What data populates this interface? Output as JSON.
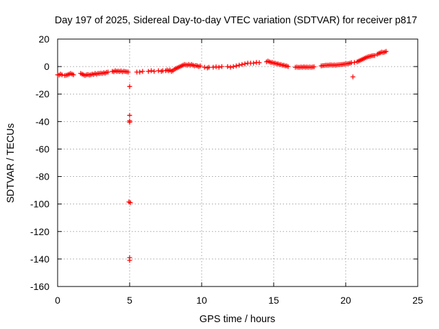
{
  "chart_data": {
    "type": "scatter",
    "title": "Day 197 of 2025, Sidereal Day-to-day VTEC variation (SDTVAR) for receiver p817",
    "xlabel": "GPS time / hours",
    "ylabel": "SDTVAR / TECUs",
    "xlim": [
      0,
      25
    ],
    "ylim": [
      -160,
      20
    ],
    "xticks": [
      "0",
      "5",
      "10",
      "15",
      "20",
      "25"
    ],
    "yticks": [
      "20",
      "0",
      "-20",
      "-40",
      "-60",
      "-80",
      "-100",
      "-120",
      "-140",
      "-160"
    ],
    "grid": true,
    "marker": "+",
    "color": "#ff0000",
    "series": [
      {
        "name": "SDTVAR",
        "points": [
          [
            0.0,
            -6.0
          ],
          [
            0.1,
            -6.2
          ],
          [
            0.2,
            -5.5
          ],
          [
            0.3,
            -6.0
          ],
          [
            0.5,
            -6.5
          ],
          [
            0.6,
            -6.3
          ],
          [
            0.7,
            -6.0
          ],
          [
            0.8,
            -5.5
          ],
          [
            0.9,
            -5.0
          ],
          [
            1.0,
            -5.5
          ],
          [
            1.1,
            -6.0
          ],
          [
            1.6,
            -5.0
          ],
          [
            1.7,
            -5.5
          ],
          [
            1.8,
            -6.0
          ],
          [
            1.9,
            -6.5
          ],
          [
            2.0,
            -6.0
          ],
          [
            2.1,
            -5.8
          ],
          [
            2.2,
            -6.2
          ],
          [
            2.3,
            -6.0
          ],
          [
            2.4,
            -5.5
          ],
          [
            2.5,
            -5.8
          ],
          [
            2.6,
            -5.0
          ],
          [
            2.7,
            -5.5
          ],
          [
            2.8,
            -5.0
          ],
          [
            2.9,
            -5.0
          ],
          [
            3.0,
            -4.8
          ],
          [
            3.1,
            -5.0
          ],
          [
            3.2,
            -4.5
          ],
          [
            3.3,
            -4.8
          ],
          [
            3.4,
            -4.2
          ],
          [
            3.5,
            -4.0
          ],
          [
            3.8,
            -3.5
          ],
          [
            3.9,
            -3.8
          ],
          [
            4.0,
            -3.0
          ],
          [
            4.1,
            -3.5
          ],
          [
            4.2,
            -3.3
          ],
          [
            4.3,
            -3.6
          ],
          [
            4.4,
            -3.2
          ],
          [
            4.5,
            -3.8
          ],
          [
            4.6,
            -3.4
          ],
          [
            4.7,
            -3.6
          ],
          [
            4.8,
            -3.8
          ],
          [
            4.9,
            -4.0
          ],
          [
            5.0,
            -14.5
          ],
          [
            5.0,
            -35.5
          ],
          [
            5.0,
            -39.5
          ],
          [
            5.0,
            -40.5
          ],
          [
            4.95,
            -98.5
          ],
          [
            5.05,
            -99.0
          ],
          [
            5.0,
            -139.0
          ],
          [
            5.0,
            -141.0
          ],
          [
            5.5,
            -4.0
          ],
          [
            5.7,
            -4.0
          ],
          [
            5.9,
            -3.5
          ],
          [
            6.3,
            -3.5
          ],
          [
            6.5,
            -3.0
          ],
          [
            6.7,
            -3.5
          ],
          [
            7.0,
            -3.0
          ],
          [
            7.2,
            -3.5
          ],
          [
            7.3,
            -3.0
          ],
          [
            7.5,
            -3.0
          ],
          [
            7.6,
            -2.5
          ],
          [
            7.7,
            -3.0
          ],
          [
            7.8,
            -2.5
          ],
          [
            7.9,
            -3.5
          ],
          [
            8.0,
            -3.0
          ],
          [
            8.1,
            -2.0
          ],
          [
            8.2,
            -1.5
          ],
          [
            8.3,
            -1.0
          ],
          [
            8.4,
            -0.5
          ],
          [
            8.5,
            0.0
          ],
          [
            8.6,
            0.5
          ],
          [
            8.7,
            1.0
          ],
          [
            8.8,
            1.5
          ],
          [
            8.9,
            1.2
          ],
          [
            9.0,
            1.0
          ],
          [
            9.1,
            1.5
          ],
          [
            9.2,
            1.0
          ],
          [
            9.3,
            1.5
          ],
          [
            9.4,
            1.0
          ],
          [
            9.5,
            0.5
          ],
          [
            9.6,
            0.8
          ],
          [
            9.7,
            0.5
          ],
          [
            9.8,
            0.0
          ],
          [
            9.9,
            0.5
          ],
          [
            10.2,
            -0.5
          ],
          [
            10.4,
            -1.0
          ],
          [
            10.5,
            -0.5
          ],
          [
            10.8,
            -0.5
          ],
          [
            11.0,
            -0.2
          ],
          [
            11.2,
            -0.5
          ],
          [
            11.4,
            0.0
          ],
          [
            11.8,
            0.0
          ],
          [
            12.0,
            -0.5
          ],
          [
            12.2,
            0.0
          ],
          [
            12.4,
            0.5
          ],
          [
            12.6,
            1.0
          ],
          [
            12.8,
            1.5
          ],
          [
            13.0,
            2.0
          ],
          [
            13.2,
            2.5
          ],
          [
            13.4,
            2.5
          ],
          [
            13.6,
            2.5
          ],
          [
            13.8,
            3.0
          ],
          [
            14.0,
            2.8
          ],
          [
            14.5,
            3.5
          ],
          [
            14.6,
            4.0
          ],
          [
            14.7,
            3.5
          ],
          [
            14.8,
            3.0
          ],
          [
            14.9,
            3.0
          ],
          [
            15.0,
            2.5
          ],
          [
            15.1,
            2.5
          ],
          [
            15.2,
            2.0
          ],
          [
            15.3,
            2.0
          ],
          [
            15.4,
            1.5
          ],
          [
            15.5,
            1.5
          ],
          [
            15.6,
            1.0
          ],
          [
            15.7,
            1.0
          ],
          [
            15.8,
            0.5
          ],
          [
            15.9,
            0.5
          ],
          [
            16.0,
            0.0
          ],
          [
            16.5,
            -0.5
          ],
          [
            16.6,
            -0.3
          ],
          [
            16.7,
            -0.5
          ],
          [
            16.8,
            -0.5
          ],
          [
            16.9,
            -0.3
          ],
          [
            17.0,
            -0.5
          ],
          [
            17.1,
            -0.2
          ],
          [
            17.2,
            -0.5
          ],
          [
            17.3,
            -0.3
          ],
          [
            17.4,
            -0.5
          ],
          [
            17.5,
            -0.3
          ],
          [
            17.6,
            -0.5
          ],
          [
            17.7,
            -0.3
          ],
          [
            17.8,
            -0.2
          ],
          [
            18.3,
            0.5
          ],
          [
            18.4,
            0.7
          ],
          [
            18.5,
            0.8
          ],
          [
            18.6,
            1.0
          ],
          [
            18.7,
            1.0
          ],
          [
            18.8,
            1.0
          ],
          [
            18.9,
            1.2
          ],
          [
            19.0,
            1.2
          ],
          [
            19.1,
            1.0
          ],
          [
            19.2,
            1.2
          ],
          [
            19.3,
            1.0
          ],
          [
            19.4,
            1.2
          ],
          [
            19.5,
            1.3
          ],
          [
            19.6,
            1.4
          ],
          [
            19.7,
            1.5
          ],
          [
            19.8,
            1.6
          ],
          [
            19.9,
            1.8
          ],
          [
            20.0,
            2.0
          ],
          [
            20.1,
            2.0
          ],
          [
            20.2,
            2.2
          ],
          [
            20.3,
            2.5
          ],
          [
            20.4,
            2.8
          ],
          [
            20.5,
            -7.5
          ],
          [
            20.6,
            3.0
          ],
          [
            20.8,
            3.5
          ],
          [
            20.9,
            4.0
          ],
          [
            21.0,
            4.5
          ],
          [
            21.1,
            5.0
          ],
          [
            21.2,
            5.5
          ],
          [
            21.3,
            6.0
          ],
          [
            21.4,
            6.5
          ],
          [
            21.5,
            7.0
          ],
          [
            21.6,
            7.3
          ],
          [
            21.7,
            7.5
          ],
          [
            21.8,
            7.8
          ],
          [
            21.9,
            8.0
          ],
          [
            22.0,
            8.0
          ],
          [
            22.2,
            9.0
          ],
          [
            22.3,
            9.5
          ],
          [
            22.4,
            10.0
          ],
          [
            22.5,
            10.5
          ],
          [
            22.6,
            10.2
          ],
          [
            22.7,
            10.5
          ],
          [
            22.8,
            11.0
          ]
        ]
      }
    ]
  }
}
